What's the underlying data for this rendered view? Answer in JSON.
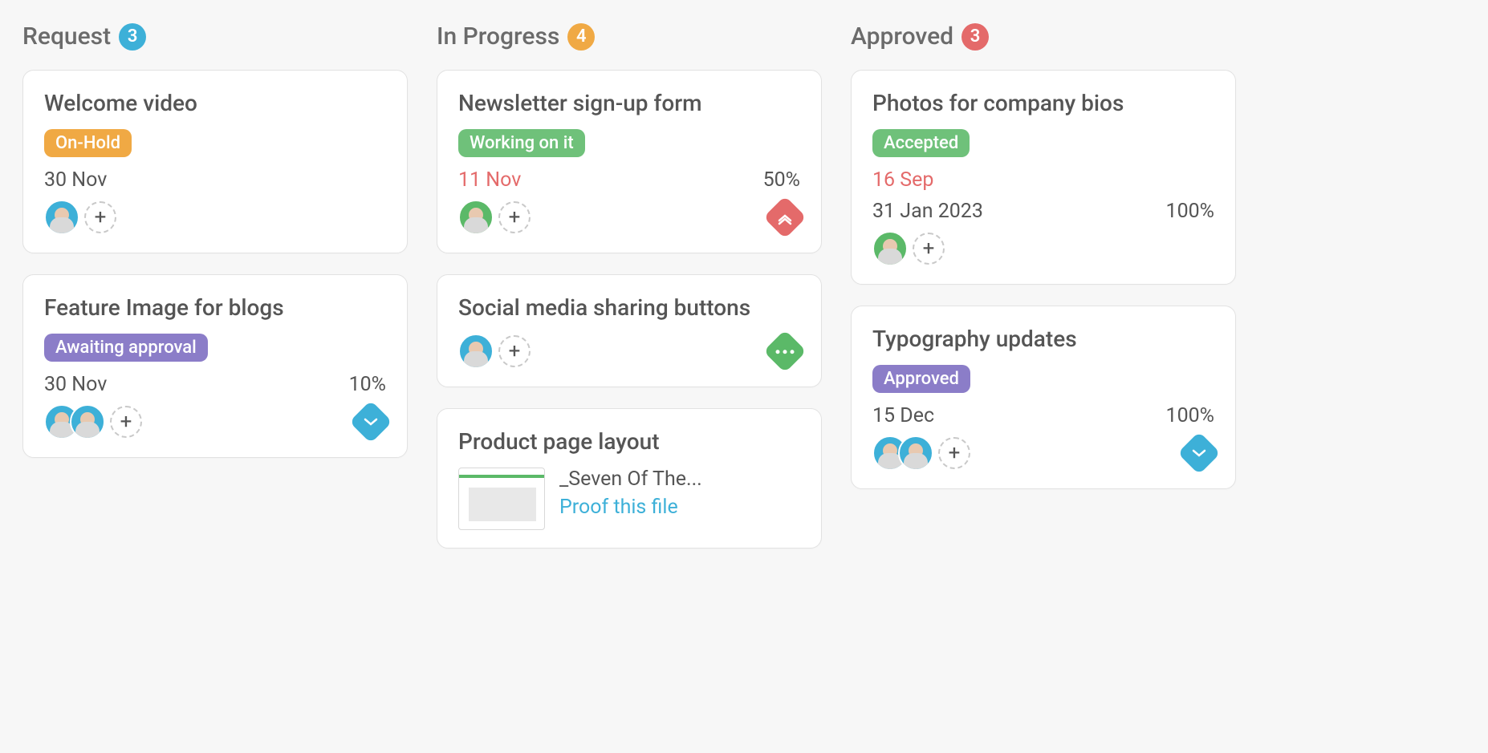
{
  "colors": {
    "badge_blue": "#3db0d8",
    "badge_orange": "#f0a944",
    "badge_red": "#e46a6a",
    "pill_orange": "#f0a944",
    "pill_purple": "#8b7dc8",
    "pill_green": "#6fc17a",
    "priority_red": "#e46a6a",
    "priority_green": "#5bb968",
    "priority_blue": "#3db0d8"
  },
  "columns": [
    {
      "title": "Request",
      "count": "3",
      "badge_color": "#3db0d8",
      "cards": [
        {
          "title": "Welcome video",
          "status": {
            "label": "On-Hold",
            "color": "#f0a944"
          },
          "date": "30 Nov",
          "overdue": false,
          "progress": null,
          "avatars": [
            {
              "bg": "blue"
            }
          ],
          "priority": null
        },
        {
          "title": "Feature Image for blogs",
          "status": {
            "label": "Awaiting approval",
            "color": "#8b7dc8"
          },
          "date": "30 Nov",
          "overdue": false,
          "progress": "10%",
          "avatars": [
            {
              "bg": "blue"
            },
            {
              "bg": "blue"
            }
          ],
          "priority": {
            "type": "down",
            "color": "#3db0d8"
          }
        }
      ]
    },
    {
      "title": "In Progress",
      "count": "4",
      "badge_color": "#f0a944",
      "cards": [
        {
          "title": "Newsletter sign-up form",
          "status": {
            "label": "Working on it",
            "color": "#6fc17a"
          },
          "date": "11 Nov",
          "overdue": true,
          "progress": "50%",
          "avatars": [
            {
              "bg": "green"
            }
          ],
          "priority": {
            "type": "double-up",
            "color": "#e46a6a"
          }
        },
        {
          "title": "Social media sharing buttons",
          "status": null,
          "date": null,
          "overdue": false,
          "progress": null,
          "avatars": [
            {
              "bg": "blue"
            }
          ],
          "priority": {
            "type": "dots",
            "color": "#5bb968"
          }
        },
        {
          "title": "Product page layout",
          "status": null,
          "date": null,
          "overdue": false,
          "progress": null,
          "avatars": null,
          "priority": null,
          "attachment": {
            "name": "_Seven Of The...",
            "link_label": "Proof this file"
          }
        }
      ]
    },
    {
      "title": "Approved",
      "count": "3",
      "badge_color": "#e46a6a",
      "cards": [
        {
          "title": "Photos for company bios",
          "status": {
            "label": "Accepted",
            "color": "#6fc17a"
          },
          "date": "16 Sep",
          "overdue": true,
          "date2": "31 Jan 2023",
          "progress": "100%",
          "avatars": [
            {
              "bg": "green"
            }
          ],
          "priority": null
        },
        {
          "title": "Typography updates",
          "status": {
            "label": "Approved",
            "color": "#8b7dc8"
          },
          "date": "15 Dec",
          "overdue": false,
          "progress": "100%",
          "avatars": [
            {
              "bg": "blue"
            },
            {
              "bg": "blue"
            }
          ],
          "priority": {
            "type": "down",
            "color": "#3db0d8"
          }
        }
      ]
    }
  ]
}
